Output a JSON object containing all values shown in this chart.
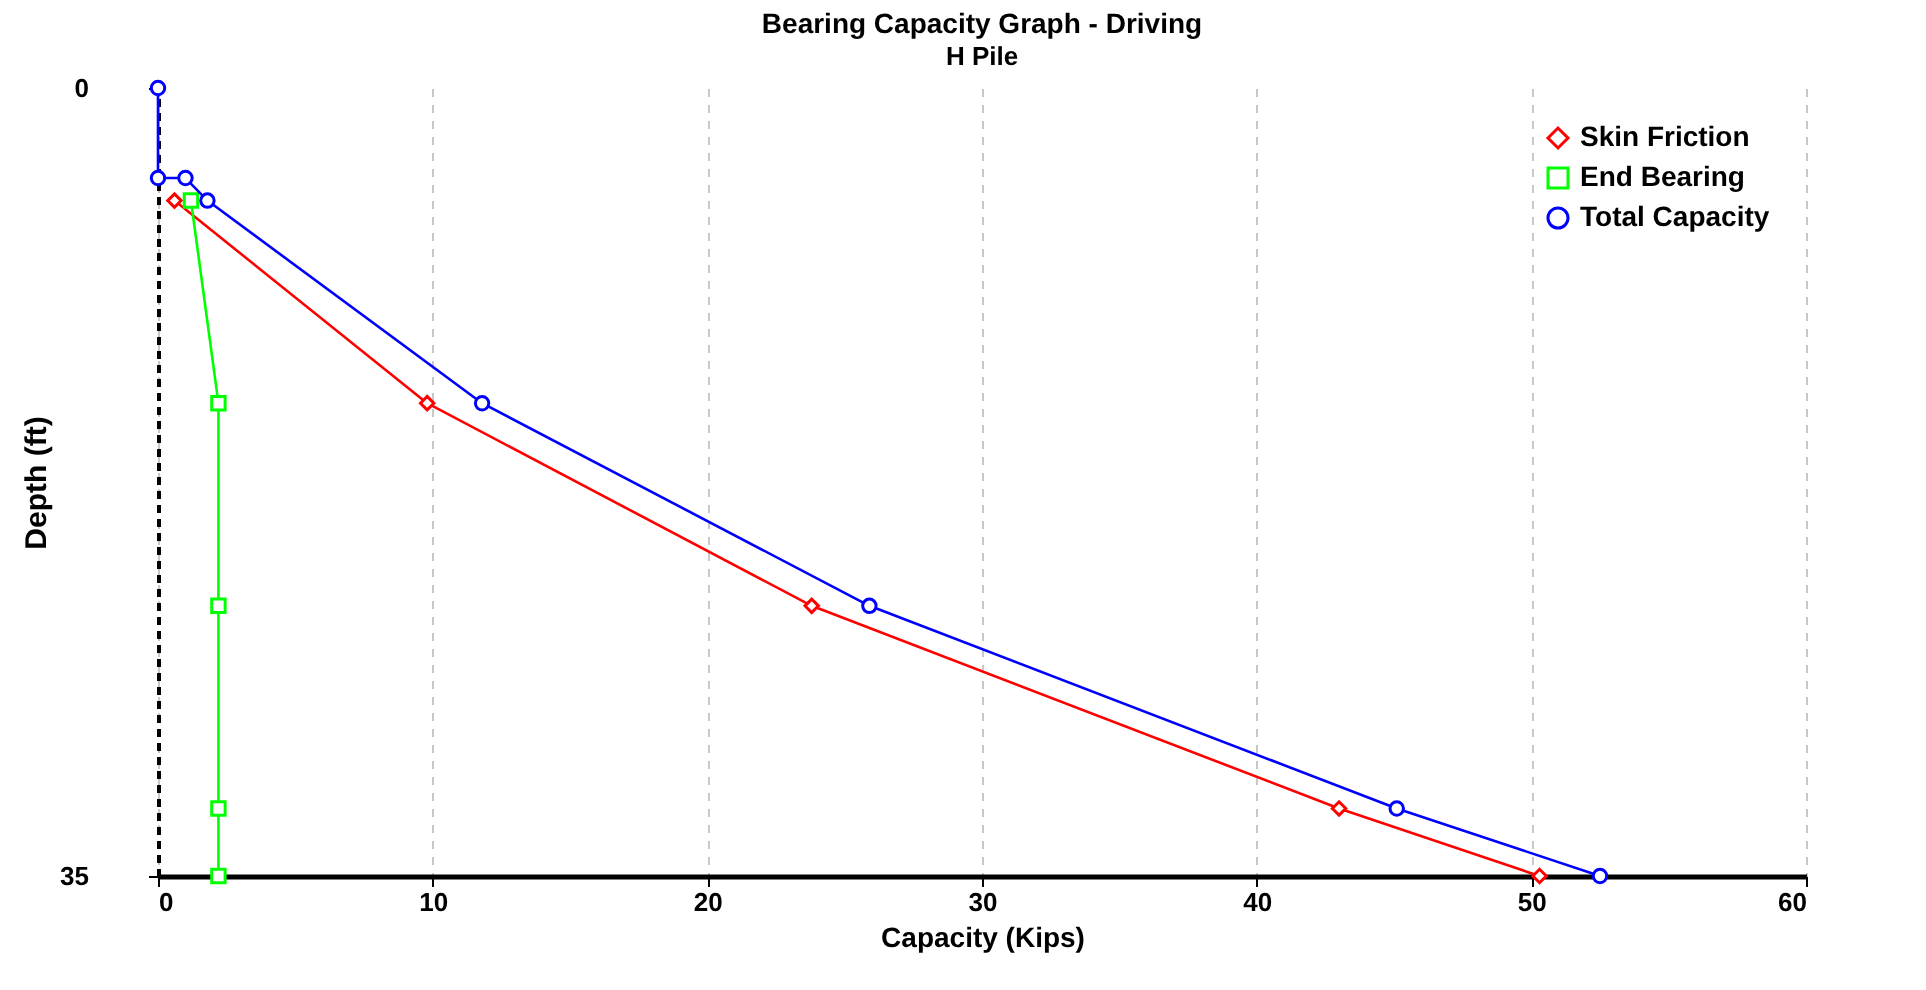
{
  "chart_data": {
    "type": "line",
    "title": "Bearing Capacity Graph - Driving",
    "subtitle": "H Pile",
    "xlabel": "Capacity (Kips)",
    "ylabel": "Depth (ft)",
    "xlim": [
      0,
      60
    ],
    "xticks": [
      0,
      10,
      20,
      30,
      40,
      50,
      60
    ],
    "ylim": [
      35,
      0
    ],
    "yticks": [
      0,
      35
    ],
    "grid": "x",
    "legend": "top right",
    "series": [
      {
        "name": "Skin Friction",
        "color": "#ff0000",
        "marker": "diamond",
        "x": [
          0.6,
          9.8,
          23.8,
          43,
          50.3
        ],
        "values": [
          5,
          14,
          23,
          32,
          35
        ]
      },
      {
        "name": "End Bearing",
        "color": "#00ff00",
        "marker": "square",
        "x": [
          1.2,
          2.2,
          2.2,
          2.2,
          2.2
        ],
        "values": [
          5,
          14,
          23,
          32,
          35
        ]
      },
      {
        "name": "Total Capacity",
        "color": "#0000ff",
        "marker": "circle",
        "x": [
          0,
          0,
          1,
          1.8,
          11.8,
          25.9,
          45.1,
          52.5
        ],
        "values": [
          0,
          4,
          4,
          5,
          14,
          23,
          32,
          35
        ]
      }
    ]
  }
}
